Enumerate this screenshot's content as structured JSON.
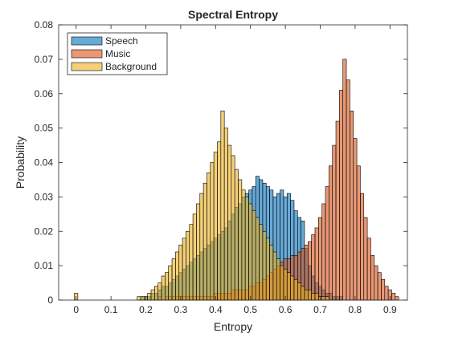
{
  "chart_data": {
    "type": "histogram",
    "title": "Spectral Entropy",
    "xlabel": "Entropy",
    "ylabel": "Probability",
    "xlim": [
      -0.05,
      0.95
    ],
    "ylim": [
      0,
      0.08
    ],
    "x_ticks": [
      0,
      0.1,
      0.2,
      0.3,
      0.4,
      0.5,
      0.6,
      0.7,
      0.8,
      0.9
    ],
    "x_tick_labels": [
      "0",
      "0.1",
      "0.2",
      "0.3",
      "0.4",
      "0.5",
      "0.6",
      "0.7",
      "0.8",
      "0.9"
    ],
    "y_ticks": [
      0,
      0.01,
      0.02,
      0.03,
      0.04,
      0.05,
      0.06,
      0.07,
      0.08
    ],
    "y_tick_labels": [
      "0",
      "0.01",
      "0.02",
      "0.03",
      "0.04",
      "0.05",
      "0.06",
      "0.07",
      "0.08"
    ],
    "bin_width": 0.01,
    "face_alpha": 0.6,
    "legend_position": "top-left",
    "grid": false,
    "series": [
      {
        "name": "Speech",
        "color": "#0072BD",
        "bins": [
          [
            0.19,
            0.001
          ],
          [
            0.2,
            0.001
          ],
          [
            0.21,
            0.001
          ],
          [
            0.22,
            0.002
          ],
          [
            0.23,
            0.002
          ],
          [
            0.24,
            0.003
          ],
          [
            0.25,
            0.004
          ],
          [
            0.26,
            0.004
          ],
          [
            0.27,
            0.005
          ],
          [
            0.28,
            0.006
          ],
          [
            0.29,
            0.007
          ],
          [
            0.3,
            0.008
          ],
          [
            0.31,
            0.009
          ],
          [
            0.32,
            0.01
          ],
          [
            0.33,
            0.011
          ],
          [
            0.34,
            0.012
          ],
          [
            0.35,
            0.013
          ],
          [
            0.36,
            0.014
          ],
          [
            0.37,
            0.015
          ],
          [
            0.38,
            0.016
          ],
          [
            0.39,
            0.017
          ],
          [
            0.4,
            0.018
          ],
          [
            0.41,
            0.019
          ],
          [
            0.42,
            0.02
          ],
          [
            0.43,
            0.021
          ],
          [
            0.44,
            0.023
          ],
          [
            0.45,
            0.025
          ],
          [
            0.46,
            0.027
          ],
          [
            0.47,
            0.028
          ],
          [
            0.48,
            0.03
          ],
          [
            0.49,
            0.031
          ],
          [
            0.5,
            0.032
          ],
          [
            0.51,
            0.033
          ],
          [
            0.52,
            0.036
          ],
          [
            0.53,
            0.035
          ],
          [
            0.54,
            0.034
          ],
          [
            0.55,
            0.033
          ],
          [
            0.56,
            0.032
          ],
          [
            0.57,
            0.03
          ],
          [
            0.58,
            0.031
          ],
          [
            0.59,
            0.032
          ],
          [
            0.6,
            0.03
          ],
          [
            0.61,
            0.031
          ],
          [
            0.62,
            0.029
          ],
          [
            0.63,
            0.026
          ],
          [
            0.64,
            0.024
          ],
          [
            0.65,
            0.023
          ],
          [
            0.66,
            0.015
          ],
          [
            0.67,
            0.01
          ],
          [
            0.68,
            0.007
          ],
          [
            0.69,
            0.005
          ],
          [
            0.7,
            0.004
          ],
          [
            0.71,
            0.003
          ],
          [
            0.72,
            0.002
          ],
          [
            0.73,
            0.002
          ],
          [
            0.74,
            0.001
          ],
          [
            0.75,
            0.001
          ],
          [
            0.76,
            0.001
          ]
        ]
      },
      {
        "name": "Music",
        "color": "#D95319",
        "bins": [
          [
            0.24,
            0.001
          ],
          [
            0.26,
            0.001
          ],
          [
            0.27,
            0.001
          ],
          [
            0.28,
            0.001
          ],
          [
            0.29,
            0.001
          ],
          [
            0.3,
            0.001
          ],
          [
            0.31,
            0.001
          ],
          [
            0.32,
            0.001
          ],
          [
            0.33,
            0.001
          ],
          [
            0.34,
            0.001
          ],
          [
            0.35,
            0.001
          ],
          [
            0.36,
            0.001
          ],
          [
            0.37,
            0.001
          ],
          [
            0.38,
            0.001
          ],
          [
            0.39,
            0.001
          ],
          [
            0.4,
            0.002
          ],
          [
            0.41,
            0.002
          ],
          [
            0.42,
            0.002
          ],
          [
            0.43,
            0.002
          ],
          [
            0.44,
            0.002
          ],
          [
            0.45,
            0.003
          ],
          [
            0.46,
            0.003
          ],
          [
            0.47,
            0.003
          ],
          [
            0.48,
            0.003
          ],
          [
            0.49,
            0.003
          ],
          [
            0.5,
            0.004
          ],
          [
            0.51,
            0.004
          ],
          [
            0.52,
            0.005
          ],
          [
            0.53,
            0.005
          ],
          [
            0.54,
            0.006
          ],
          [
            0.55,
            0.007
          ],
          [
            0.56,
            0.008
          ],
          [
            0.57,
            0.009
          ],
          [
            0.58,
            0.01
          ],
          [
            0.59,
            0.011
          ],
          [
            0.6,
            0.012
          ],
          [
            0.61,
            0.012
          ],
          [
            0.62,
            0.013
          ],
          [
            0.63,
            0.013
          ],
          [
            0.64,
            0.014
          ],
          [
            0.65,
            0.015
          ],
          [
            0.66,
            0.016
          ],
          [
            0.67,
            0.017
          ],
          [
            0.68,
            0.019
          ],
          [
            0.69,
            0.021
          ],
          [
            0.7,
            0.024
          ],
          [
            0.71,
            0.028
          ],
          [
            0.72,
            0.033
          ],
          [
            0.73,
            0.039
          ],
          [
            0.74,
            0.045
          ],
          [
            0.75,
            0.052
          ],
          [
            0.76,
            0.061
          ],
          [
            0.77,
            0.07
          ],
          [
            0.78,
            0.064
          ],
          [
            0.79,
            0.055
          ],
          [
            0.8,
            0.047
          ],
          [
            0.81,
            0.039
          ],
          [
            0.82,
            0.031
          ],
          [
            0.83,
            0.024
          ],
          [
            0.84,
            0.018
          ],
          [
            0.85,
            0.013
          ],
          [
            0.86,
            0.01
          ],
          [
            0.87,
            0.008
          ],
          [
            0.88,
            0.006
          ],
          [
            0.89,
            0.004
          ],
          [
            0.9,
            0.003
          ],
          [
            0.91,
            0.002
          ],
          [
            0.92,
            0.001
          ]
        ]
      },
      {
        "name": "Background",
        "color": "#EDB120",
        "bins": [
          [
            0.0,
            0.002
          ],
          [
            0.18,
            0.001
          ],
          [
            0.19,
            0.001
          ],
          [
            0.2,
            0.001
          ],
          [
            0.21,
            0.002
          ],
          [
            0.22,
            0.003
          ],
          [
            0.23,
            0.004
          ],
          [
            0.24,
            0.005
          ],
          [
            0.25,
            0.007
          ],
          [
            0.26,
            0.008
          ],
          [
            0.27,
            0.01
          ],
          [
            0.28,
            0.012
          ],
          [
            0.29,
            0.014
          ],
          [
            0.3,
            0.016
          ],
          [
            0.31,
            0.018
          ],
          [
            0.32,
            0.02
          ],
          [
            0.33,
            0.022
          ],
          [
            0.34,
            0.025
          ],
          [
            0.35,
            0.028
          ],
          [
            0.36,
            0.031
          ],
          [
            0.37,
            0.034
          ],
          [
            0.38,
            0.037
          ],
          [
            0.39,
            0.04
          ],
          [
            0.4,
            0.043
          ],
          [
            0.41,
            0.046
          ],
          [
            0.42,
            0.055
          ],
          [
            0.43,
            0.05
          ],
          [
            0.44,
            0.045
          ],
          [
            0.45,
            0.042
          ],
          [
            0.46,
            0.038
          ],
          [
            0.47,
            0.035
          ],
          [
            0.48,
            0.032
          ],
          [
            0.49,
            0.03
          ],
          [
            0.5,
            0.028
          ],
          [
            0.51,
            0.026
          ],
          [
            0.52,
            0.024
          ],
          [
            0.53,
            0.022
          ],
          [
            0.54,
            0.02
          ],
          [
            0.55,
            0.018
          ],
          [
            0.56,
            0.016
          ],
          [
            0.57,
            0.014
          ],
          [
            0.58,
            0.012
          ],
          [
            0.59,
            0.01
          ],
          [
            0.6,
            0.009
          ],
          [
            0.61,
            0.008
          ],
          [
            0.62,
            0.007
          ],
          [
            0.63,
            0.006
          ],
          [
            0.64,
            0.005
          ],
          [
            0.65,
            0.004
          ],
          [
            0.66,
            0.003
          ],
          [
            0.67,
            0.003
          ],
          [
            0.68,
            0.002
          ],
          [
            0.69,
            0.002
          ],
          [
            0.7,
            0.001
          ],
          [
            0.71,
            0.001
          ],
          [
            0.72,
            0.001
          ]
        ]
      }
    ]
  }
}
